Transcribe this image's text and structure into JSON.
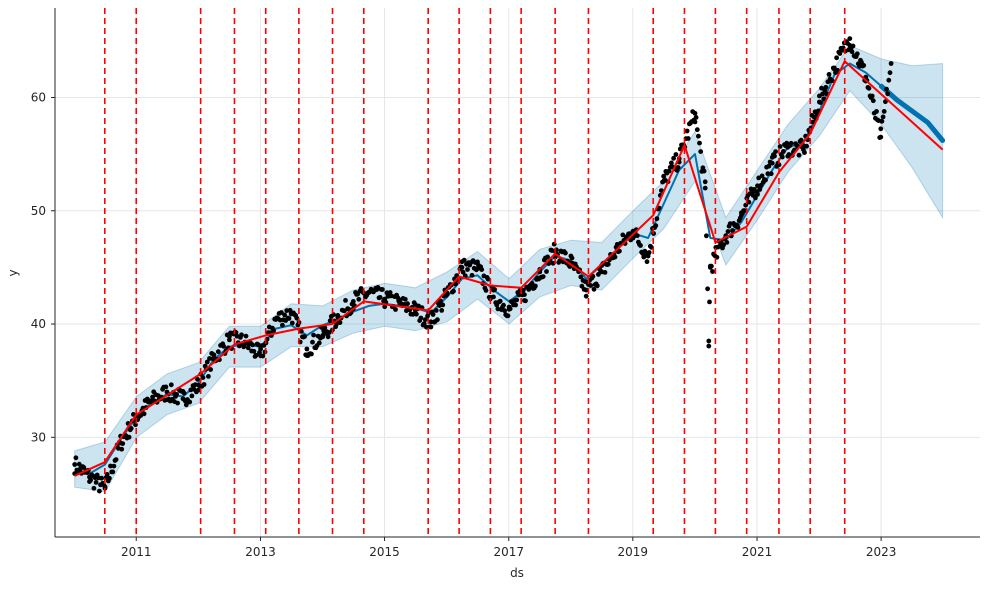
{
  "chart_data": {
    "type": "line",
    "title": "",
    "xlabel": "ds",
    "ylabel": "y",
    "xlim": [
      "2009-09-10",
      "2024-08-05"
    ],
    "ylim": [
      21.2,
      67.9
    ],
    "x_ticks": [
      "2011",
      "2013",
      "2015",
      "2017",
      "2019",
      "2021",
      "2023"
    ],
    "y_ticks": [
      "30",
      "40",
      "50",
      "60"
    ],
    "grid": true,
    "legend": "none",
    "colors": {
      "observed": "#000000",
      "forecast": "#0072B2",
      "uncertainty": "#0072B2",
      "trend": "#FF0000",
      "changepoints": "#FF0000",
      "grid": "#e6e6e6",
      "axis": "#262626"
    },
    "series": [
      {
        "role": "observed points",
        "x": [
          "2010-01-04",
          "2010-04-01",
          "2010-07-01",
          "2010-10-01",
          "2011-01-03",
          "2011-04-01",
          "2011-07-01",
          "2011-10-03",
          "2012-01-03",
          "2012-04-02",
          "2012-07-02",
          "2012-10-01",
          "2013-01-02",
          "2013-04-01",
          "2013-07-01",
          "2013-10-01",
          "2014-01-02",
          "2014-04-01",
          "2014-07-01",
          "2014-10-01",
          "2015-01-02",
          "2015-04-01",
          "2015-07-01",
          "2015-10-01",
          "2016-01-04",
          "2016-04-01",
          "2016-07-01",
          "2016-10-03",
          "2017-01-03",
          "2017-04-03",
          "2017-07-03",
          "2017-10-02",
          "2018-01-02",
          "2018-04-02",
          "2018-07-02",
          "2018-10-01",
          "2019-01-02",
          "2019-04-01",
          "2019-07-01",
          "2019-10-01",
          "2020-01-02",
          "2020-03-02",
          "2020-03-23",
          "2020-04-01",
          "2020-07-01",
          "2020-10-01",
          "2021-01-04",
          "2021-04-01",
          "2021-07-01",
          "2021-10-01",
          "2022-01-03",
          "2022-04-01",
          "2022-07-01",
          "2022-10-03",
          "2022-12-30",
          "2023-03-01"
        ],
        "y": [
          27.6,
          26.5,
          25.5,
          29.5,
          31.8,
          33.2,
          34.0,
          33.4,
          34.6,
          37.0,
          38.6,
          38.4,
          37.2,
          40.4,
          41.0,
          37.8,
          39.0,
          40.6,
          42.0,
          42.8,
          42.2,
          41.8,
          41.2,
          40.2,
          42.6,
          45.0,
          44.9,
          42.4,
          41.3,
          42.6,
          44.6,
          46.4,
          45.4,
          43.0,
          44.6,
          46.6,
          48.2,
          46.0,
          52.6,
          54.6,
          58.6,
          52.0,
          38.5,
          45.0,
          47.8,
          49.6,
          52.2,
          54.2,
          55.6,
          55.4,
          59.6,
          62.6,
          65.2,
          61.8,
          56.5,
          63.0
        ]
      },
      {
        "role": "forecast",
        "x": [
          "2010-01-04",
          "2010-04-01",
          "2010-07-01",
          "2010-10-01",
          "2011-01-03",
          "2011-04-01",
          "2011-07-01",
          "2011-10-03",
          "2012-01-03",
          "2012-04-02",
          "2012-07-02",
          "2012-10-01",
          "2013-01-02",
          "2013-04-01",
          "2013-07-01",
          "2013-10-01",
          "2014-01-02",
          "2014-04-01",
          "2014-07-01",
          "2014-10-01",
          "2015-01-02",
          "2015-04-01",
          "2015-07-01",
          "2015-10-01",
          "2016-01-04",
          "2016-04-01",
          "2016-07-01",
          "2016-10-03",
          "2017-01-03",
          "2017-04-03",
          "2017-07-03",
          "2017-10-02",
          "2018-01-02",
          "2018-04-02",
          "2018-07-02",
          "2018-10-01",
          "2019-01-02",
          "2019-04-01",
          "2019-07-01",
          "2019-10-01",
          "2020-01-02",
          "2020-04-01",
          "2020-07-01",
          "2020-10-01",
          "2021-01-04",
          "2021-04-01",
          "2021-07-01",
          "2021-10-01",
          "2022-01-03",
          "2022-04-01",
          "2022-07-01",
          "2022-10-03",
          "2023-01-03",
          "2023-04-03",
          "2023-07-03",
          "2023-10-02",
          "2023-12-29"
        ],
        "y": [
          27.2,
          26.8,
          27.6,
          29.8,
          31.8,
          33.0,
          33.8,
          33.6,
          34.8,
          36.9,
          38.0,
          38.2,
          38.0,
          39.6,
          39.9,
          39.0,
          39.9,
          40.4,
          41.1,
          41.6,
          41.8,
          41.6,
          41.4,
          41.0,
          42.4,
          44.0,
          44.3,
          43.0,
          42.0,
          43.0,
          44.6,
          46.0,
          45.6,
          44.0,
          45.2,
          46.6,
          48.0,
          47.6,
          50.6,
          53.6,
          55.0,
          47.6,
          47.4,
          49.0,
          51.4,
          53.6,
          55.6,
          56.0,
          58.8,
          62.0,
          63.0,
          62.2,
          61.0,
          59.8,
          58.8,
          57.8,
          56.2
        ]
      },
      {
        "role": "uncertainty interval",
        "x": [
          "2010-01-04",
          "2010-07-01",
          "2011-01-03",
          "2011-07-01",
          "2012-01-03",
          "2012-07-02",
          "2013-01-02",
          "2013-07-01",
          "2014-01-02",
          "2014-07-01",
          "2015-01-02",
          "2015-07-01",
          "2016-01-04",
          "2016-07-01",
          "2017-01-03",
          "2017-07-03",
          "2018-01-02",
          "2018-07-02",
          "2019-01-02",
          "2019-07-01",
          "2020-01-02",
          "2020-07-01",
          "2021-01-04",
          "2021-07-01",
          "2022-01-03",
          "2022-07-01",
          "2023-01-03",
          "2023-07-03",
          "2023-12-29"
        ],
        "lower": [
          25.6,
          25.2,
          30.0,
          32.0,
          33.0,
          36.2,
          36.2,
          38.0,
          38.0,
          39.2,
          39.8,
          39.4,
          40.2,
          42.2,
          40.0,
          42.4,
          43.4,
          43.0,
          45.8,
          48.4,
          52.6,
          45.2,
          49.2,
          53.4,
          56.6,
          60.6,
          57.6,
          53.8,
          49.4
        ],
        "upper": [
          28.8,
          29.6,
          33.6,
          35.6,
          36.6,
          39.8,
          39.8,
          41.8,
          41.6,
          43.0,
          43.6,
          43.2,
          44.6,
          46.4,
          44.0,
          46.6,
          47.4,
          47.2,
          50.0,
          52.6,
          57.0,
          49.4,
          53.6,
          57.6,
          60.8,
          64.6,
          63.4,
          62.8,
          63.0
        ]
      },
      {
        "role": "trend",
        "x": [
          "2010-01-04",
          "2010-06-30",
          "2011-01-01",
          "2012-01-15",
          "2012-08-01",
          "2013-02-01",
          "2013-08-15",
          "2014-03-01",
          "2014-09-01",
          "2015-09-15",
          "2016-03-15",
          "2016-09-15",
          "2017-03-15",
          "2017-10-01",
          "2018-04-15",
          "2019-05-01",
          "2019-11-01",
          "2020-05-01",
          "2020-11-01",
          "2021-05-10",
          "2021-11-10",
          "2022-06-01",
          "2023-12-29"
        ],
        "y": [
          26.6,
          27.8,
          32.0,
          35.6,
          38.2,
          39.0,
          39.6,
          40.0,
          42.0,
          41.2,
          44.2,
          43.4,
          43.2,
          46.2,
          44.2,
          49.6,
          55.8,
          47.2,
          48.6,
          53.4,
          56.8,
          63.2,
          55.4
        ]
      },
      {
        "role": "changepoints",
        "x": [
          "2010-06-30",
          "2011-01-01",
          "2012-01-15",
          "2012-08-01",
          "2013-02-01",
          "2013-08-15",
          "2014-03-01",
          "2014-09-01",
          "2015-09-15",
          "2016-03-15",
          "2016-09-15",
          "2017-03-15",
          "2017-10-01",
          "2018-04-15",
          "2019-05-01",
          "2019-11-01",
          "2020-05-01",
          "2020-11-01",
          "2021-05-10",
          "2021-11-10",
          "2022-06-01"
        ]
      }
    ]
  }
}
